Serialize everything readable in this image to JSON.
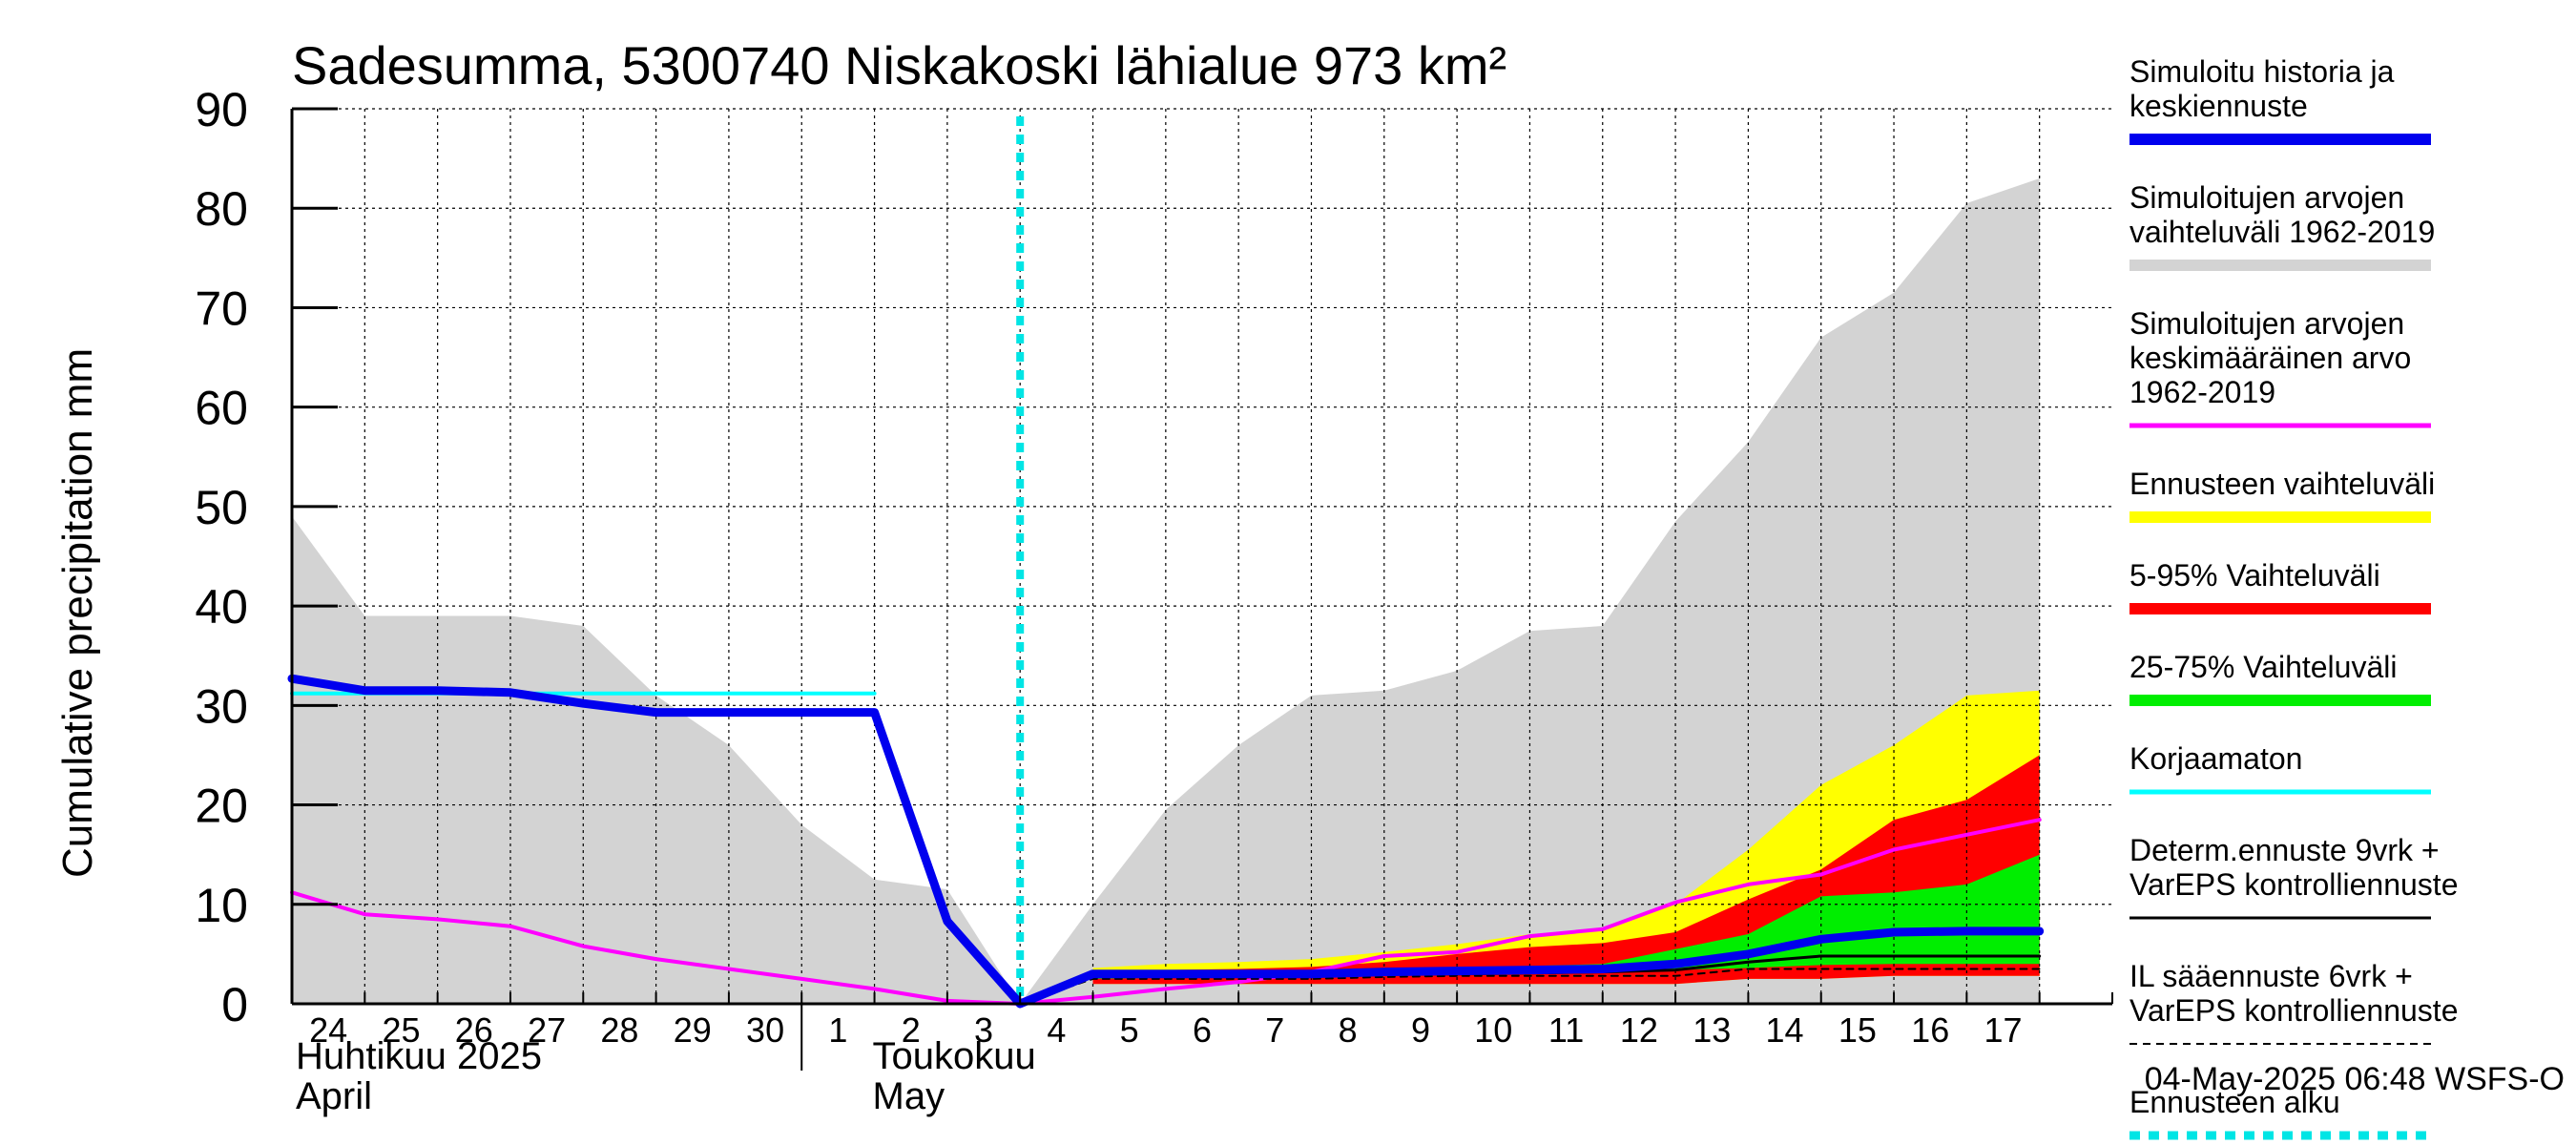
{
  "chart_data": {
    "type": "area",
    "title": "Sadesumma, 5300740 Niskakoski lähialue 973 km²",
    "ylabel": "Cumulative precipitation   mm",
    "ylim": [
      0,
      90
    ],
    "yticks": [
      0,
      10,
      20,
      30,
      40,
      50,
      60,
      70,
      80,
      90
    ],
    "grid": true,
    "x_range": [
      24,
      49
    ],
    "day_labels": [
      {
        "x": 24,
        "label": "24"
      },
      {
        "x": 25,
        "label": "25"
      },
      {
        "x": 26,
        "label": "26"
      },
      {
        "x": 27,
        "label": "27"
      },
      {
        "x": 28,
        "label": "28"
      },
      {
        "x": 29,
        "label": "29"
      },
      {
        "x": 30,
        "label": "30"
      },
      {
        "x": 31,
        "label": "1"
      },
      {
        "x": 32,
        "label": "2"
      },
      {
        "x": 33,
        "label": "3"
      },
      {
        "x": 34,
        "label": "4"
      },
      {
        "x": 35,
        "label": "5"
      },
      {
        "x": 36,
        "label": "6"
      },
      {
        "x": 37,
        "label": "7"
      },
      {
        "x": 38,
        "label": "8"
      },
      {
        "x": 39,
        "label": "9"
      },
      {
        "x": 40,
        "label": "10"
      },
      {
        "x": 41,
        "label": "11"
      },
      {
        "x": 42,
        "label": "12"
      },
      {
        "x": 43,
        "label": "13"
      },
      {
        "x": 44,
        "label": "14"
      },
      {
        "x": 45,
        "label": "15"
      },
      {
        "x": 46,
        "label": "16"
      },
      {
        "x": 47,
        "label": "17"
      }
    ],
    "month_labels": {
      "april_fi": "Huhtikuu  2025",
      "april_en": "April",
      "may_fi": "Toukokuu",
      "may_en": "May"
    },
    "forecast_start_x": 34,
    "timestamp": "04-May-2025 06:48 WSFS-O",
    "series": [
      {
        "key": "hist_range",
        "kind": "band",
        "color": "#d3d3d3",
        "x": [
          24,
          25,
          26,
          27,
          28,
          29,
          30,
          31,
          32,
          33,
          34,
          35,
          36,
          37,
          38,
          39,
          40,
          41,
          42,
          43,
          44,
          45,
          46,
          47,
          48
        ],
        "lower": [
          0,
          0,
          0,
          0,
          0,
          0,
          0,
          0,
          0,
          0,
          0,
          0,
          0,
          0,
          0,
          0,
          0,
          0,
          0,
          0,
          0,
          0,
          0,
          0,
          0
        ],
        "upper": [
          49,
          39,
          39,
          39,
          38,
          31,
          26,
          18,
          12.5,
          11.5,
          0,
          10,
          19.5,
          26,
          31,
          31.5,
          33.5,
          37.5,
          38,
          48.5,
          56.5,
          67,
          71.5,
          80.5,
          83
        ]
      },
      {
        "key": "forecast_range",
        "kind": "band",
        "color": "#ffff00",
        "x": [
          35,
          36,
          37,
          38,
          39,
          40,
          41,
          42,
          43,
          44,
          45,
          46,
          47,
          48
        ],
        "lower": [
          2,
          2,
          2,
          2,
          2,
          2,
          2,
          2,
          2,
          2.5,
          2.5,
          2.8,
          2.8,
          2.8
        ],
        "upper": [
          3.6,
          4,
          4.2,
          4.5,
          5.2,
          6,
          7,
          7.5,
          10,
          15.5,
          22,
          26,
          31,
          31.5
        ]
      },
      {
        "key": "p5_95",
        "kind": "band",
        "color": "#ff0000",
        "x": [
          35,
          36,
          37,
          38,
          39,
          40,
          41,
          42,
          43,
          44,
          45,
          46,
          47,
          48
        ],
        "lower": [
          2,
          2,
          2,
          2,
          2,
          2,
          2,
          2,
          2,
          2.5,
          2.5,
          2.8,
          2.8,
          2.8
        ],
        "upper": [
          3.3,
          3.4,
          3.5,
          3.7,
          4.2,
          5,
          5.7,
          6.1,
          7.2,
          10.5,
          13.5,
          18.5,
          20.5,
          25
        ]
      },
      {
        "key": "p25_75",
        "kind": "band",
        "color": "#00ee00",
        "x": [
          35,
          36,
          37,
          38,
          39,
          40,
          41,
          42,
          43,
          44,
          45,
          46,
          47,
          48
        ],
        "lower": [
          2.5,
          2.6,
          2.7,
          2.8,
          3,
          3.1,
          3.2,
          3.3,
          3.4,
          3.6,
          3.9,
          4,
          4,
          4
        ],
        "upper": [
          3.1,
          3.2,
          3.3,
          3.4,
          3.6,
          3.7,
          3.8,
          4,
          5.5,
          7,
          10.8,
          11.2,
          12,
          15
        ]
      },
      {
        "key": "mean_hist",
        "kind": "line",
        "color": "#ff00ff",
        "width": 4,
        "x": [
          24,
          25,
          26,
          27,
          28,
          29,
          30,
          31,
          32,
          33,
          34,
          35,
          36,
          37,
          38,
          39,
          40,
          41,
          42,
          43,
          44,
          45,
          46,
          47,
          48
        ],
        "y": [
          11.2,
          9,
          8.5,
          7.8,
          5.8,
          4.5,
          3.5,
          2.5,
          1.5,
          0.3,
          0,
          0.7,
          1.5,
          2.2,
          3.2,
          4.8,
          5.2,
          6.8,
          7.5,
          10.2,
          12,
          13,
          15.5,
          17,
          18.5
        ]
      },
      {
        "key": "il_forecast",
        "kind": "line",
        "color": "#000000",
        "width": 2,
        "dash": "7,6",
        "x": [
          34,
          35,
          36,
          37,
          38,
          39,
          40,
          41,
          42,
          43,
          44,
          45,
          46,
          47,
          48
        ],
        "y": [
          0,
          2.5,
          2.5,
          2.5,
          2.5,
          2.7,
          2.8,
          2.8,
          2.8,
          2.8,
          3.5,
          3.5,
          3.5,
          3.5,
          3.5
        ]
      },
      {
        "key": "determ",
        "kind": "line",
        "color": "#000000",
        "width": 3,
        "x": [
          34,
          35,
          36,
          37,
          38,
          39,
          40,
          41,
          42,
          43,
          44,
          45,
          46,
          47,
          48
        ],
        "y": [
          0,
          2.8,
          2.8,
          2.8,
          2.9,
          3,
          3,
          3.1,
          3.2,
          3.4,
          4.2,
          4.8,
          4.8,
          4.8,
          4.8
        ]
      },
      {
        "key": "uncorrected",
        "kind": "line",
        "color": "#00ffff",
        "width": 4,
        "x": [
          24,
          25,
          26,
          27,
          28,
          29,
          30,
          31,
          32
        ],
        "y": [
          31.2,
          31.2,
          31.2,
          31.2,
          31.2,
          31.2,
          31.2,
          31.2,
          31.2
        ]
      },
      {
        "key": "sim_history",
        "kind": "line",
        "color": "#0000ee",
        "width": 9,
        "x": [
          24,
          25,
          26,
          27,
          28,
          29,
          30,
          31,
          32,
          33,
          34,
          35,
          36,
          37,
          38,
          39,
          40,
          41,
          42,
          43,
          44,
          45,
          46,
          47,
          48
        ],
        "y": [
          32.7,
          31.5,
          31.5,
          31.3,
          30.2,
          29.3,
          29.3,
          29.3,
          29.3,
          8.3,
          0,
          3,
          3,
          3,
          3,
          3.2,
          3.3,
          3.4,
          3.5,
          4,
          5,
          6.5,
          7.2,
          7.3,
          7.3
        ]
      }
    ],
    "legend": {
      "placement": "right",
      "entries": [
        {
          "lines": [
            "Simuloitu historia ja",
            "keskiennuste"
          ],
          "color": "#0000ee",
          "style": "thick"
        },
        {
          "lines": [
            "Simuloitujen arvojen",
            "vaihteluväli 1962-2019"
          ],
          "color": "#d3d3d3",
          "style": "thick"
        },
        {
          "lines": [
            "Simuloitujen arvojen",
            "keskimääräinen arvo",
            "   1962-2019"
          ],
          "color": "#ff00ff",
          "style": "medium"
        },
        {
          "lines": [
            "Ennusteen vaihteluväli"
          ],
          "color": "#ffff00",
          "style": "thick"
        },
        {
          "lines": [
            "5-95% Vaihteluväli"
          ],
          "color": "#ff0000",
          "style": "thick"
        },
        {
          "lines": [
            "25-75% Vaihteluväli"
          ],
          "color": "#00ee00",
          "style": "thick"
        },
        {
          "lines": [
            "Korjaamaton"
          ],
          "color": "#00ffff",
          "style": "medium"
        },
        {
          "lines": [
            "Determ.ennuste 9vrk +",
            "VarEPS kontrolliennuste"
          ],
          "color": "#000000",
          "style": "thin"
        },
        {
          "lines": [
            "IL sääennuste 6vrk  +",
            "  VarEPS kontrolliennuste"
          ],
          "color": "#000000",
          "style": "dashed"
        },
        {
          "lines": [
            "Ennusteen alku"
          ],
          "color": "#00e5e5",
          "style": "dotted"
        }
      ]
    }
  }
}
